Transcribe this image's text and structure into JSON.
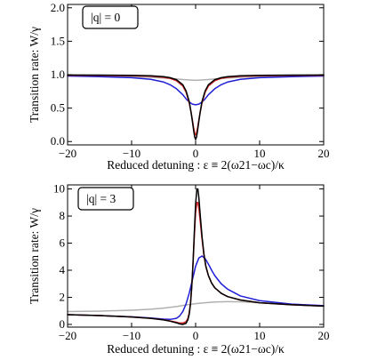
{
  "chart_data": [
    {
      "type": "line",
      "box_label": "|q| = 0",
      "xlabel": "Reduced detuning : ε ≡ 2(ω21−ωc)/κ",
      "ylabel": "Transition rate: W/γ",
      "xlim": [
        -20,
        20
      ],
      "ylim": [
        -0.05,
        2.05
      ],
      "xticks": [
        -20,
        -10,
        0,
        10,
        20
      ],
      "xtick_labels": [
        "−20",
        "−10",
        "0",
        "10",
        "20"
      ],
      "yticks": [
        0.0,
        0.5,
        1.0,
        1.5,
        2.0
      ],
      "ytick_labels": [
        "0.0",
        "0.5",
        "1.0",
        "1.5",
        "2.0"
      ],
      "series": [
        {
          "color": "#000000",
          "x": [
            -20,
            -15,
            -10,
            -7,
            -5,
            -4,
            -3,
            -2,
            -1.5,
            -1,
            -0.7,
            -0.5,
            -0.3,
            -0.15,
            0,
            0.15,
            0.3,
            0.5,
            0.7,
            1,
            1.5,
            2,
            3,
            4,
            5,
            7,
            10,
            15,
            20
          ],
          "y": [
            0.995,
            0.993,
            0.99,
            0.984,
            0.97,
            0.955,
            0.925,
            0.85,
            0.76,
            0.6,
            0.43,
            0.3,
            0.16,
            0.07,
            0.03,
            0.07,
            0.16,
            0.3,
            0.43,
            0.6,
            0.76,
            0.85,
            0.925,
            0.955,
            0.97,
            0.984,
            0.99,
            0.993,
            0.995
          ]
        },
        {
          "color": "#d62728",
          "x": [
            -20,
            -15,
            -10,
            -7,
            -5,
            -4,
            -3,
            -2,
            -1.5,
            -1,
            -0.7,
            -0.5,
            -0.3,
            -0.15,
            0,
            0.15,
            0.3,
            0.5,
            0.7,
            1,
            1.5,
            2,
            3,
            4,
            5,
            7,
            10,
            15,
            20
          ],
          "y": [
            0.99,
            0.988,
            0.984,
            0.976,
            0.96,
            0.945,
            0.91,
            0.83,
            0.74,
            0.58,
            0.43,
            0.32,
            0.2,
            0.13,
            0.1,
            0.13,
            0.2,
            0.32,
            0.43,
            0.58,
            0.74,
            0.83,
            0.91,
            0.945,
            0.96,
            0.976,
            0.984,
            0.988,
            0.99
          ]
        },
        {
          "color": "#1f1fd6",
          "x": [
            -20,
            -15,
            -10,
            -7,
            -5,
            -4,
            -3,
            -2,
            -1.5,
            -1,
            -0.5,
            0,
            0.5,
            1,
            1.5,
            2,
            3,
            4,
            5,
            7,
            10,
            15,
            20
          ],
          "y": [
            0.98,
            0.97,
            0.955,
            0.93,
            0.89,
            0.85,
            0.79,
            0.7,
            0.64,
            0.59,
            0.56,
            0.55,
            0.56,
            0.59,
            0.64,
            0.7,
            0.79,
            0.85,
            0.89,
            0.93,
            0.955,
            0.97,
            0.98
          ]
        },
        {
          "color": "#b0b0b0",
          "x": [
            -20,
            -15,
            -10,
            -7,
            -5,
            -3,
            -1,
            0,
            1,
            3,
            5,
            7,
            10,
            15,
            20
          ],
          "y": [
            0.985,
            0.98,
            0.97,
            0.96,
            0.95,
            0.935,
            0.92,
            0.915,
            0.92,
            0.935,
            0.95,
            0.96,
            0.97,
            0.98,
            0.985
          ]
        }
      ]
    },
    {
      "type": "line",
      "box_label": "|q| = 3",
      "xlabel": "Reduced detuning : ε ≡ 2(ω21−ωc)/κ",
      "ylabel": "Transition rate: W/γ",
      "xlim": [
        -20,
        20
      ],
      "ylim": [
        -0.2,
        10.3
      ],
      "xticks": [
        -20,
        -10,
        0,
        10,
        20
      ],
      "xtick_labels": [
        "−20",
        "−10",
        "0",
        "10",
        "20"
      ],
      "yticks": [
        0,
        2,
        4,
        6,
        8,
        10
      ],
      "ytick_labels": [
        "0",
        "2",
        "4",
        "6",
        "8",
        "10"
      ],
      "series": [
        {
          "color": "#000000",
          "x": [
            -20,
            -15,
            -10,
            -7,
            -5,
            -4,
            -3,
            -2.5,
            -2,
            -1.5,
            -1.2,
            -1,
            -0.8,
            -0.6,
            -0.4,
            -0.2,
            0,
            0.2,
            0.35,
            0.5,
            0.7,
            1,
            1.3,
            1.6,
            2,
            2.5,
            3,
            4,
            5,
            7,
            10,
            15,
            20
          ],
          "y": [
            0.72,
            0.65,
            0.55,
            0.45,
            0.33,
            0.24,
            0.12,
            0.04,
            0.0,
            0.08,
            0.35,
            0.75,
            1.5,
            2.8,
            4.6,
            6.8,
            8.9,
            10.0,
            10.0,
            9.4,
            8.2,
            6.5,
            5.2,
            4.3,
            3.6,
            3.05,
            2.7,
            2.3,
            2.05,
            1.8,
            1.6,
            1.45,
            1.35
          ]
        },
        {
          "color": "#d62728",
          "x": [
            -20,
            -15,
            -10,
            -7,
            -5,
            -4,
            -3,
            -2.5,
            -2,
            -1.5,
            -1.2,
            -1,
            -0.8,
            -0.6,
            -0.4,
            -0.2,
            0,
            0.2,
            0.35,
            0.5,
            0.7,
            1,
            1.3,
            1.6,
            2,
            2.5,
            3,
            4,
            5,
            7,
            10,
            15,
            20
          ],
          "y": [
            0.72,
            0.65,
            0.55,
            0.45,
            0.34,
            0.26,
            0.16,
            0.1,
            0.1,
            0.2,
            0.45,
            0.85,
            1.55,
            2.8,
            4.5,
            6.5,
            8.2,
            9.0,
            9.0,
            8.6,
            7.7,
            6.3,
            5.1,
            4.25,
            3.6,
            3.05,
            2.7,
            2.3,
            2.05,
            1.8,
            1.6,
            1.45,
            1.35
          ]
        },
        {
          "color": "#1f1fd6",
          "x": [
            -20,
            -15,
            -10,
            -7,
            -5,
            -4,
            -3,
            -2.5,
            -2,
            -1.5,
            -1,
            -0.5,
            0,
            0.5,
            1,
            1.5,
            2,
            2.5,
            3,
            4,
            5,
            7,
            10,
            15,
            20
          ],
          "y": [
            0.72,
            0.65,
            0.56,
            0.47,
            0.39,
            0.37,
            0.45,
            0.62,
            0.95,
            1.5,
            2.3,
            3.3,
            4.3,
            4.9,
            5.05,
            4.85,
            4.45,
            4.0,
            3.6,
            3.0,
            2.6,
            2.1,
            1.75,
            1.5,
            1.38
          ]
        },
        {
          "color": "#b0b0b0",
          "x": [
            -20,
            -15,
            -10,
            -7,
            -5,
            -3,
            -1,
            0,
            1,
            3,
            5,
            7,
            10,
            15,
            20
          ],
          "y": [
            0.95,
            0.98,
            1.05,
            1.12,
            1.2,
            1.32,
            1.47,
            1.53,
            1.58,
            1.65,
            1.68,
            1.67,
            1.6,
            1.48,
            1.38
          ]
        }
      ]
    }
  ]
}
